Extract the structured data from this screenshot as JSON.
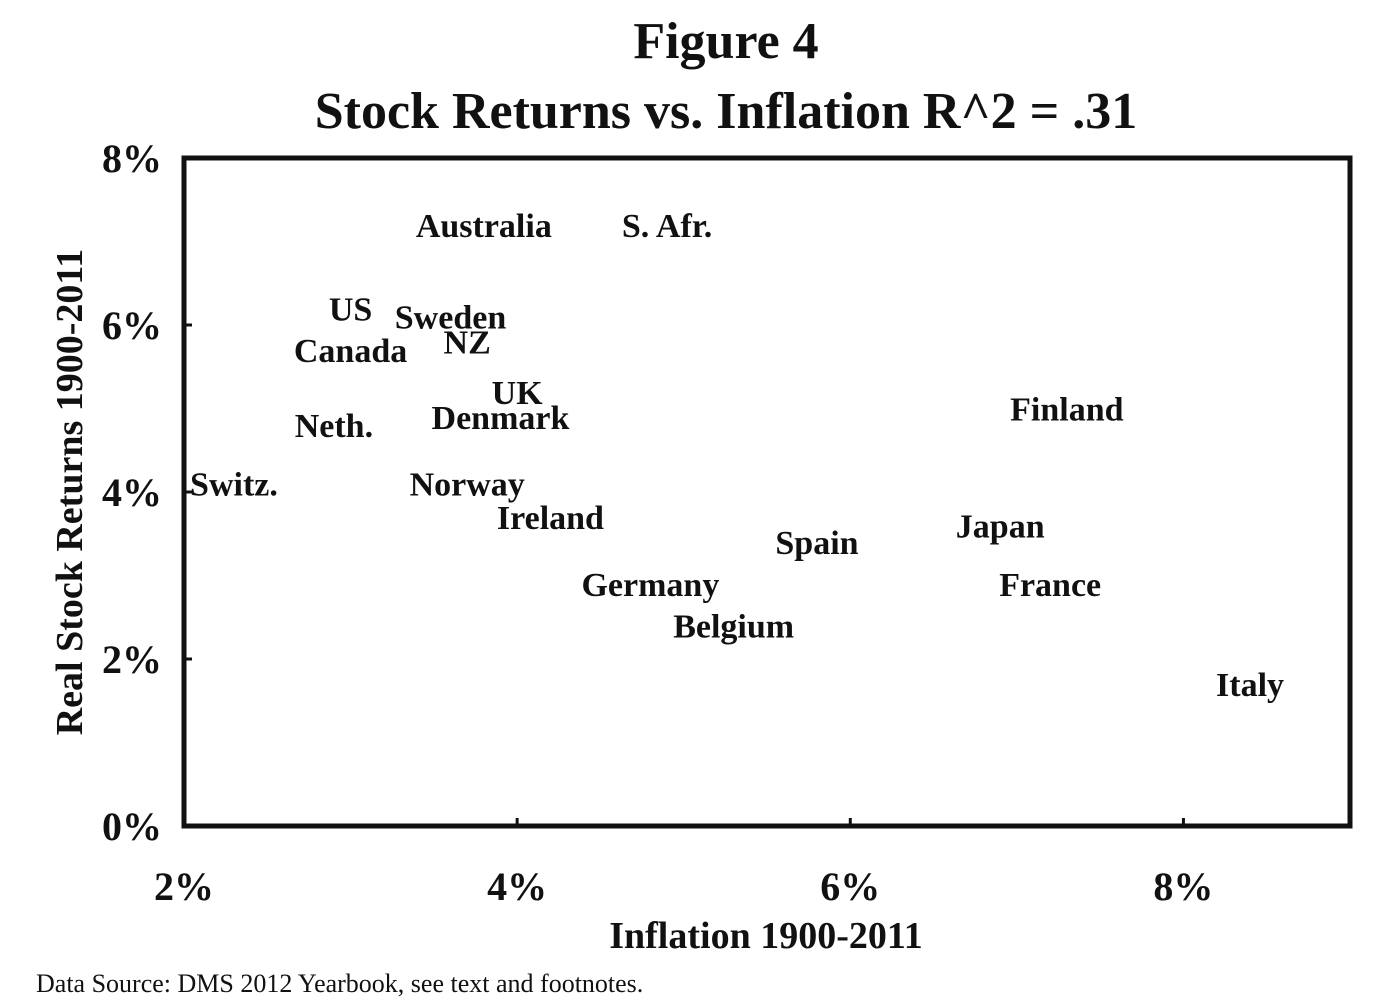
{
  "chart_data": {
    "type": "scatter",
    "title": "Figure 4",
    "subtitle": "Stock Returns vs. Inflation R^2 = .31",
    "xlabel": "Inflation 1900-2011",
    "ylabel": "Real Stock Returns 1900-2011",
    "xlim": [
      2,
      9
    ],
    "ylim": [
      0,
      8
    ],
    "x_ticks": [
      2,
      4,
      6,
      8
    ],
    "y_ticks": [
      0,
      2,
      4,
      6,
      8
    ],
    "x_tick_labels": [
      "2%",
      "4%",
      "6%",
      "8%"
    ],
    "y_tick_labels": [
      "0%",
      "2%",
      "4%",
      "6%",
      "8%"
    ],
    "marker": "country name label",
    "grid": false,
    "points": [
      {
        "label": "Australia",
        "x": 3.8,
        "y": 7.2
      },
      {
        "label": "S. Afr.",
        "x": 4.9,
        "y": 7.2
      },
      {
        "label": "US",
        "x": 3.0,
        "y": 6.2
      },
      {
        "label": "Sweden",
        "x": 3.6,
        "y": 6.1
      },
      {
        "label": "NZ",
        "x": 3.7,
        "y": 5.8
      },
      {
        "label": "Canada",
        "x": 3.0,
        "y": 5.7
      },
      {
        "label": "UK",
        "x": 4.0,
        "y": 5.2
      },
      {
        "label": "Denmark",
        "x": 3.9,
        "y": 4.9
      },
      {
        "label": "Finland",
        "x": 7.3,
        "y": 5.0
      },
      {
        "label": "Neth.",
        "x": 2.9,
        "y": 4.8
      },
      {
        "label": "Switz.",
        "x": 2.3,
        "y": 4.1
      },
      {
        "label": "Norway",
        "x": 3.7,
        "y": 4.1
      },
      {
        "label": "Ireland",
        "x": 4.2,
        "y": 3.7
      },
      {
        "label": "Spain",
        "x": 5.8,
        "y": 3.4
      },
      {
        "label": "Japan",
        "x": 6.9,
        "y": 3.6
      },
      {
        "label": "Germany",
        "x": 4.8,
        "y": 2.9
      },
      {
        "label": "France",
        "x": 7.2,
        "y": 2.9
      },
      {
        "label": "Belgium",
        "x": 5.3,
        "y": 2.4
      },
      {
        "label": "Italy",
        "x": 8.4,
        "y": 1.7
      }
    ]
  },
  "footer": {
    "source_note": "Data Source: DMS 2012 Yearbook, see text and footnotes."
  }
}
